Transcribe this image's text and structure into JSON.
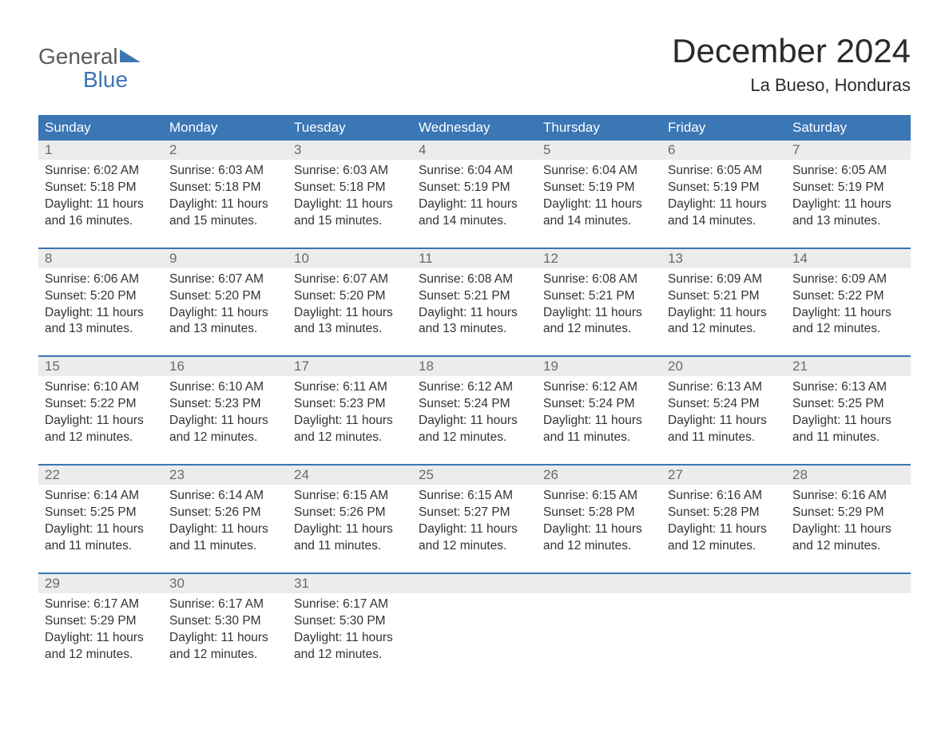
{
  "logo": {
    "line1": "General",
    "line2": "Blue",
    "brand_color": "#3b76b5",
    "gray_color": "#5a5a5a"
  },
  "title": "December 2024",
  "location": "La Bueso, Honduras",
  "colors": {
    "header_bg": "#3b76b5",
    "header_text": "#ffffff",
    "daynum_bg": "#ececec",
    "daynum_text": "#6a6a6a",
    "body_text": "#333333",
    "page_bg": "#ffffff",
    "week_border": "#3b76b5"
  },
  "day_labels": [
    "Sunday",
    "Monday",
    "Tuesday",
    "Wednesday",
    "Thursday",
    "Friday",
    "Saturday"
  ],
  "weeks": [
    {
      "days": [
        {
          "num": "1",
          "sunrise": "Sunrise: 6:02 AM",
          "sunset": "Sunset: 5:18 PM",
          "day1": "Daylight: 11 hours",
          "day2": "and 16 minutes."
        },
        {
          "num": "2",
          "sunrise": "Sunrise: 6:03 AM",
          "sunset": "Sunset: 5:18 PM",
          "day1": "Daylight: 11 hours",
          "day2": "and 15 minutes."
        },
        {
          "num": "3",
          "sunrise": "Sunrise: 6:03 AM",
          "sunset": "Sunset: 5:18 PM",
          "day1": "Daylight: 11 hours",
          "day2": "and 15 minutes."
        },
        {
          "num": "4",
          "sunrise": "Sunrise: 6:04 AM",
          "sunset": "Sunset: 5:19 PM",
          "day1": "Daylight: 11 hours",
          "day2": "and 14 minutes."
        },
        {
          "num": "5",
          "sunrise": "Sunrise: 6:04 AM",
          "sunset": "Sunset: 5:19 PM",
          "day1": "Daylight: 11 hours",
          "day2": "and 14 minutes."
        },
        {
          "num": "6",
          "sunrise": "Sunrise: 6:05 AM",
          "sunset": "Sunset: 5:19 PM",
          "day1": "Daylight: 11 hours",
          "day2": "and 14 minutes."
        },
        {
          "num": "7",
          "sunrise": "Sunrise: 6:05 AM",
          "sunset": "Sunset: 5:19 PM",
          "day1": "Daylight: 11 hours",
          "day2": "and 13 minutes."
        }
      ]
    },
    {
      "days": [
        {
          "num": "8",
          "sunrise": "Sunrise: 6:06 AM",
          "sunset": "Sunset: 5:20 PM",
          "day1": "Daylight: 11 hours",
          "day2": "and 13 minutes."
        },
        {
          "num": "9",
          "sunrise": "Sunrise: 6:07 AM",
          "sunset": "Sunset: 5:20 PM",
          "day1": "Daylight: 11 hours",
          "day2": "and 13 minutes."
        },
        {
          "num": "10",
          "sunrise": "Sunrise: 6:07 AM",
          "sunset": "Sunset: 5:20 PM",
          "day1": "Daylight: 11 hours",
          "day2": "and 13 minutes."
        },
        {
          "num": "11",
          "sunrise": "Sunrise: 6:08 AM",
          "sunset": "Sunset: 5:21 PM",
          "day1": "Daylight: 11 hours",
          "day2": "and 13 minutes."
        },
        {
          "num": "12",
          "sunrise": "Sunrise: 6:08 AM",
          "sunset": "Sunset: 5:21 PM",
          "day1": "Daylight: 11 hours",
          "day2": "and 12 minutes."
        },
        {
          "num": "13",
          "sunrise": "Sunrise: 6:09 AM",
          "sunset": "Sunset: 5:21 PM",
          "day1": "Daylight: 11 hours",
          "day2": "and 12 minutes."
        },
        {
          "num": "14",
          "sunrise": "Sunrise: 6:09 AM",
          "sunset": "Sunset: 5:22 PM",
          "day1": "Daylight: 11 hours",
          "day2": "and 12 minutes."
        }
      ]
    },
    {
      "days": [
        {
          "num": "15",
          "sunrise": "Sunrise: 6:10 AM",
          "sunset": "Sunset: 5:22 PM",
          "day1": "Daylight: 11 hours",
          "day2": "and 12 minutes."
        },
        {
          "num": "16",
          "sunrise": "Sunrise: 6:10 AM",
          "sunset": "Sunset: 5:23 PM",
          "day1": "Daylight: 11 hours",
          "day2": "and 12 minutes."
        },
        {
          "num": "17",
          "sunrise": "Sunrise: 6:11 AM",
          "sunset": "Sunset: 5:23 PM",
          "day1": "Daylight: 11 hours",
          "day2": "and 12 minutes."
        },
        {
          "num": "18",
          "sunrise": "Sunrise: 6:12 AM",
          "sunset": "Sunset: 5:24 PM",
          "day1": "Daylight: 11 hours",
          "day2": "and 12 minutes."
        },
        {
          "num": "19",
          "sunrise": "Sunrise: 6:12 AM",
          "sunset": "Sunset: 5:24 PM",
          "day1": "Daylight: 11 hours",
          "day2": "and 11 minutes."
        },
        {
          "num": "20",
          "sunrise": "Sunrise: 6:13 AM",
          "sunset": "Sunset: 5:24 PM",
          "day1": "Daylight: 11 hours",
          "day2": "and 11 minutes."
        },
        {
          "num": "21",
          "sunrise": "Sunrise: 6:13 AM",
          "sunset": "Sunset: 5:25 PM",
          "day1": "Daylight: 11 hours",
          "day2": "and 11 minutes."
        }
      ]
    },
    {
      "days": [
        {
          "num": "22",
          "sunrise": "Sunrise: 6:14 AM",
          "sunset": "Sunset: 5:25 PM",
          "day1": "Daylight: 11 hours",
          "day2": "and 11 minutes."
        },
        {
          "num": "23",
          "sunrise": "Sunrise: 6:14 AM",
          "sunset": "Sunset: 5:26 PM",
          "day1": "Daylight: 11 hours",
          "day2": "and 11 minutes."
        },
        {
          "num": "24",
          "sunrise": "Sunrise: 6:15 AM",
          "sunset": "Sunset: 5:26 PM",
          "day1": "Daylight: 11 hours",
          "day2": "and 11 minutes."
        },
        {
          "num": "25",
          "sunrise": "Sunrise: 6:15 AM",
          "sunset": "Sunset: 5:27 PM",
          "day1": "Daylight: 11 hours",
          "day2": "and 12 minutes."
        },
        {
          "num": "26",
          "sunrise": "Sunrise: 6:15 AM",
          "sunset": "Sunset: 5:28 PM",
          "day1": "Daylight: 11 hours",
          "day2": "and 12 minutes."
        },
        {
          "num": "27",
          "sunrise": "Sunrise: 6:16 AM",
          "sunset": "Sunset: 5:28 PM",
          "day1": "Daylight: 11 hours",
          "day2": "and 12 minutes."
        },
        {
          "num": "28",
          "sunrise": "Sunrise: 6:16 AM",
          "sunset": "Sunset: 5:29 PM",
          "day1": "Daylight: 11 hours",
          "day2": "and 12 minutes."
        }
      ]
    },
    {
      "days": [
        {
          "num": "29",
          "sunrise": "Sunrise: 6:17 AM",
          "sunset": "Sunset: 5:29 PM",
          "day1": "Daylight: 11 hours",
          "day2": "and 12 minutes."
        },
        {
          "num": "30",
          "sunrise": "Sunrise: 6:17 AM",
          "sunset": "Sunset: 5:30 PM",
          "day1": "Daylight: 11 hours",
          "day2": "and 12 minutes."
        },
        {
          "num": "31",
          "sunrise": "Sunrise: 6:17 AM",
          "sunset": "Sunset: 5:30 PM",
          "day1": "Daylight: 11 hours",
          "day2": "and 12 minutes."
        },
        {
          "num": "",
          "sunrise": "",
          "sunset": "",
          "day1": "",
          "day2": ""
        },
        {
          "num": "",
          "sunrise": "",
          "sunset": "",
          "day1": "",
          "day2": ""
        },
        {
          "num": "",
          "sunrise": "",
          "sunset": "",
          "day1": "",
          "day2": ""
        },
        {
          "num": "",
          "sunrise": "",
          "sunset": "",
          "day1": "",
          "day2": ""
        }
      ]
    }
  ]
}
